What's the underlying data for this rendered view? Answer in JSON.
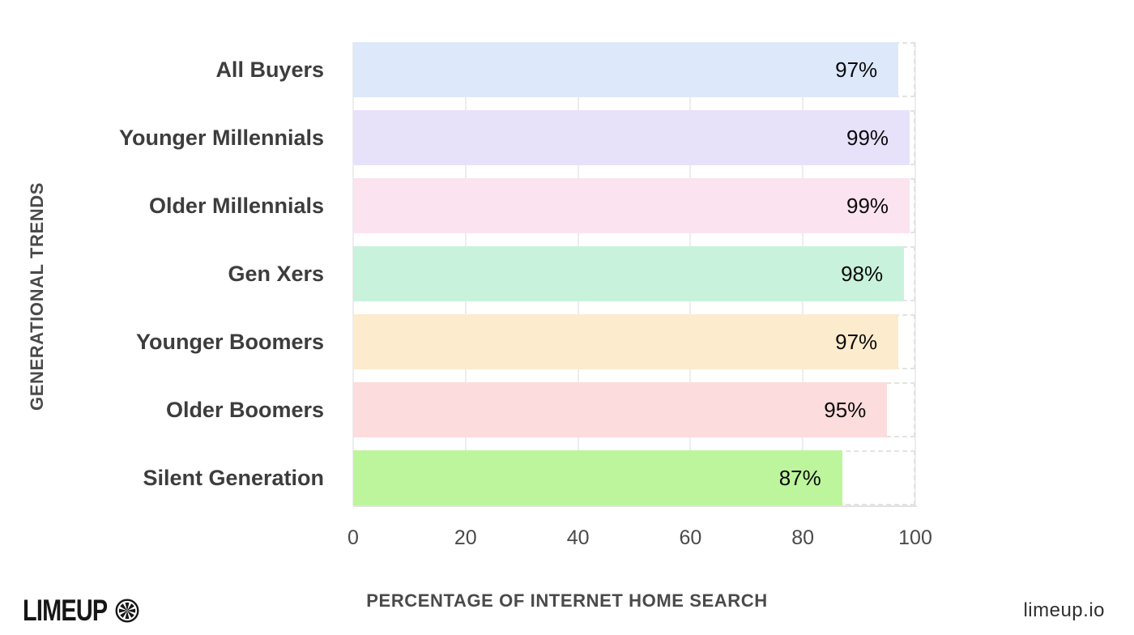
{
  "branding": {
    "logo_text": "LIMEUP",
    "logo_icon": "lime-slice-icon",
    "website": "limeup.io"
  },
  "chart_data": {
    "type": "bar",
    "orientation": "horizontal",
    "title": "",
    "xlabel": "PERCENTAGE OF INTERNET HOME SEARCH",
    "ylabel": "GENERATIONAL TRENDS",
    "categories": [
      "All Buyers",
      "Younger Millennials",
      "Older Millennials",
      "Gen Xers",
      "Younger Boomers",
      "Older Boomers",
      "Silent Generation"
    ],
    "values": [
      97,
      99,
      99,
      98,
      97,
      95,
      87
    ],
    "value_labels": [
      "97%",
      "99%",
      "99%",
      "98%",
      "97%",
      "95%",
      "87%"
    ],
    "bar_colors": [
      "#dde8fb",
      "#e7e2fa",
      "#fbe3f0",
      "#c9f2dc",
      "#fdebcd",
      "#fcdcdc",
      "#bdf59c"
    ],
    "xlim": [
      0,
      100
    ],
    "x_ticks": [
      "0",
      "20",
      "40",
      "60",
      "80",
      "100"
    ],
    "grid": "vertical light-gray gridlines at each tick; dashed light-gray 100% track outline behind every bar",
    "legend": "none",
    "colors": {
      "grid": "#ededed",
      "axis_line": "#e3e3e3",
      "track_dash": "#e3e3e3",
      "category_label": "#3d3d3d",
      "value_label": "#0a0a0a",
      "axis_title": "#4a4a4a",
      "tick_label": "#4a4a4a"
    }
  }
}
